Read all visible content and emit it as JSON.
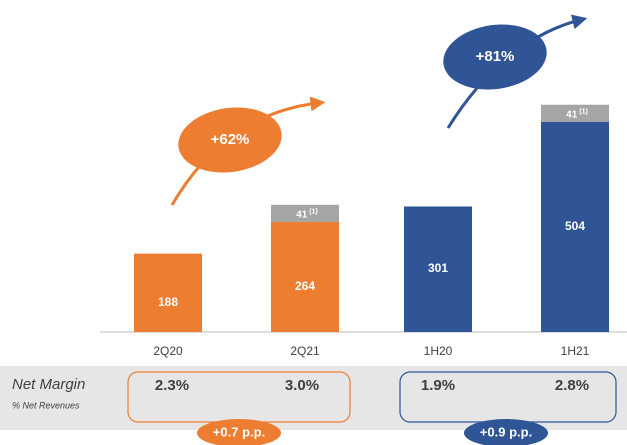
{
  "chart_data": {
    "type": "bar",
    "stacked": true,
    "categories": [
      "2Q20",
      "2Q21",
      "1H20",
      "1H21"
    ],
    "series": [
      {
        "values": [
          188,
          264,
          301,
          504
        ],
        "colors": [
          "#ed7d31",
          "#ed7d31",
          "#2f5597",
          "#2f5597"
        ]
      },
      {
        "values": [
          null,
          41,
          null,
          41
        ],
        "color": "#a5a5a5",
        "footnotes": [
          null,
          "(1)",
          null,
          "(1)"
        ]
      }
    ],
    "annotations": [
      {
        "text": "+62%",
        "color": "#ed7d31"
      },
      {
        "text": "+81%",
        "color": "#2f5597"
      }
    ],
    "net_margin": {
      "label": "Net Margin",
      "sublabel": "% Net Revenues",
      "values": [
        "2.3%",
        "3.0%",
        "1.9%",
        "2.8%"
      ],
      "changes": [
        {
          "text": "+0.7 p.p.",
          "color": "#ed7d31"
        },
        {
          "text": "+0.9 p.p.",
          "color": "#2f5597"
        }
      ]
    }
  }
}
